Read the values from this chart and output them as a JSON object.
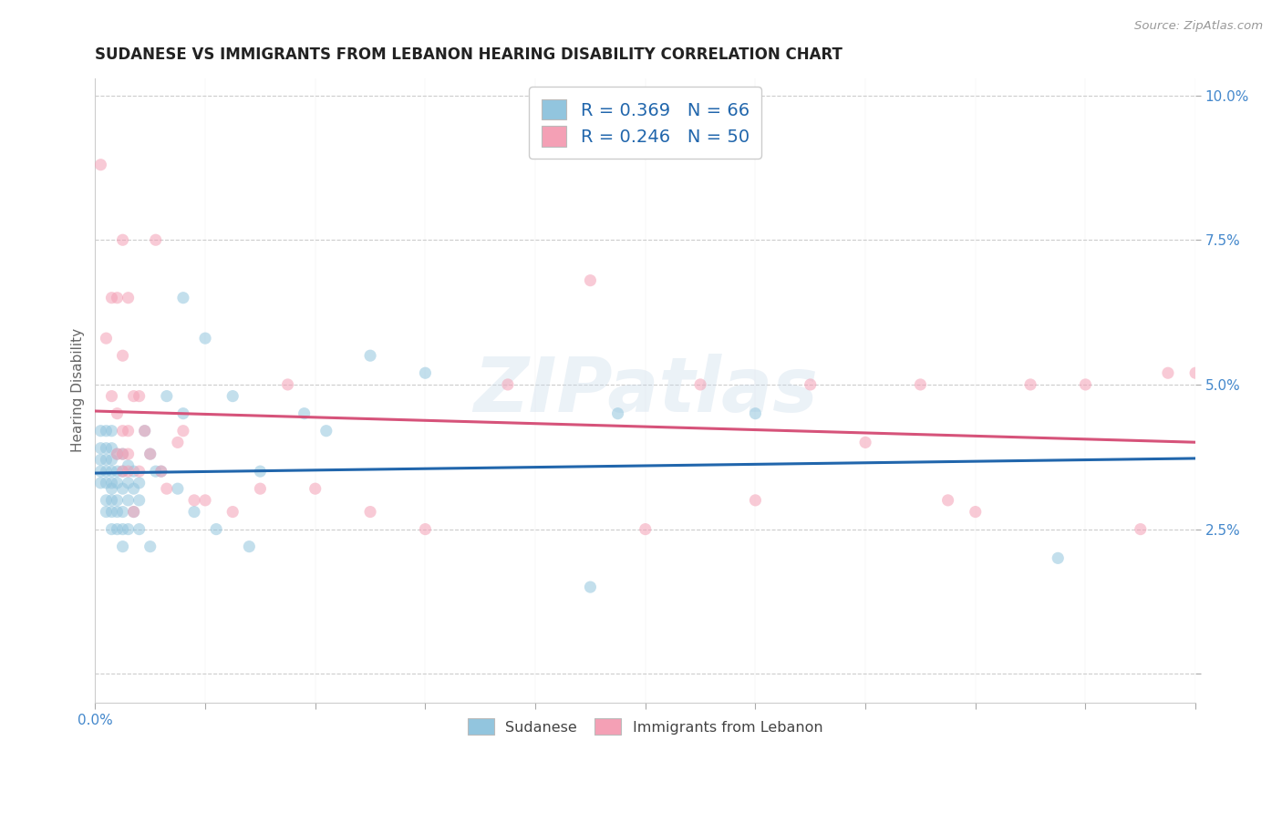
{
  "title": "SUDANESE VS IMMIGRANTS FROM LEBANON HEARING DISABILITY CORRELATION CHART",
  "source": "Source: ZipAtlas.com",
  "ylabel": "Hearing Disability",
  "xlim": [
    0.0,
    0.2
  ],
  "ylim": [
    -0.005,
    0.103
  ],
  "xticks": [
    0.0,
    0.02,
    0.04,
    0.06,
    0.08,
    0.1,
    0.12,
    0.14,
    0.16,
    0.18,
    0.2
  ],
  "yticks": [
    0.0,
    0.025,
    0.05,
    0.075,
    0.1
  ],
  "xticklabels_show": {
    "0.0": "0.0%"
  },
  "yticklabels": [
    "",
    "2.5%",
    "5.0%",
    "7.5%",
    "10.0%"
  ],
  "legend_line1": "R = 0.369   N = 66",
  "legend_line2": "R = 0.246   N = 50",
  "blue_color": "#92c5de",
  "pink_color": "#f4a0b5",
  "blue_line_color": "#2166ac",
  "pink_line_color": "#d6537a",
  "watermark_text": "ZIPatlas",
  "sudanese_x": [
    0.001,
    0.001,
    0.001,
    0.001,
    0.001,
    0.002,
    0.002,
    0.002,
    0.002,
    0.002,
    0.002,
    0.002,
    0.003,
    0.003,
    0.003,
    0.003,
    0.003,
    0.003,
    0.003,
    0.003,
    0.003,
    0.004,
    0.004,
    0.004,
    0.004,
    0.004,
    0.004,
    0.005,
    0.005,
    0.005,
    0.005,
    0.005,
    0.005,
    0.006,
    0.006,
    0.006,
    0.006,
    0.007,
    0.007,
    0.007,
    0.008,
    0.008,
    0.008,
    0.009,
    0.01,
    0.01,
    0.011,
    0.012,
    0.013,
    0.015,
    0.016,
    0.016,
    0.018,
    0.02,
    0.022,
    0.025,
    0.028,
    0.03,
    0.038,
    0.042,
    0.05,
    0.06,
    0.09,
    0.095,
    0.12,
    0.175
  ],
  "sudanese_y": [
    0.033,
    0.035,
    0.037,
    0.039,
    0.042,
    0.028,
    0.03,
    0.033,
    0.035,
    0.037,
    0.039,
    0.042,
    0.025,
    0.028,
    0.03,
    0.032,
    0.033,
    0.035,
    0.037,
    0.039,
    0.042,
    0.025,
    0.028,
    0.03,
    0.033,
    0.035,
    0.038,
    0.022,
    0.025,
    0.028,
    0.032,
    0.035,
    0.038,
    0.025,
    0.03,
    0.033,
    0.036,
    0.028,
    0.032,
    0.035,
    0.025,
    0.03,
    0.033,
    0.042,
    0.022,
    0.038,
    0.035,
    0.035,
    0.048,
    0.032,
    0.045,
    0.065,
    0.028,
    0.058,
    0.025,
    0.048,
    0.022,
    0.035,
    0.045,
    0.042,
    0.055,
    0.052,
    0.015,
    0.045,
    0.045,
    0.02
  ],
  "lebanon_x": [
    0.001,
    0.002,
    0.003,
    0.003,
    0.004,
    0.004,
    0.004,
    0.005,
    0.005,
    0.005,
    0.005,
    0.005,
    0.006,
    0.006,
    0.006,
    0.006,
    0.007,
    0.007,
    0.008,
    0.008,
    0.009,
    0.01,
    0.011,
    0.012,
    0.013,
    0.015,
    0.016,
    0.018,
    0.02,
    0.025,
    0.03,
    0.035,
    0.04,
    0.05,
    0.06,
    0.075,
    0.09,
    0.1,
    0.11,
    0.12,
    0.13,
    0.14,
    0.15,
    0.155,
    0.16,
    0.17,
    0.18,
    0.19,
    0.195,
    0.2
  ],
  "lebanon_y": [
    0.088,
    0.058,
    0.048,
    0.065,
    0.038,
    0.045,
    0.065,
    0.035,
    0.038,
    0.042,
    0.055,
    0.075,
    0.035,
    0.038,
    0.042,
    0.065,
    0.028,
    0.048,
    0.035,
    0.048,
    0.042,
    0.038,
    0.075,
    0.035,
    0.032,
    0.04,
    0.042,
    0.03,
    0.03,
    0.028,
    0.032,
    0.05,
    0.032,
    0.028,
    0.025,
    0.05,
    0.068,
    0.025,
    0.05,
    0.03,
    0.05,
    0.04,
    0.05,
    0.03,
    0.028,
    0.05,
    0.05,
    0.025,
    0.052,
    0.052
  ],
  "title_fontsize": 12,
  "axis_label_fontsize": 11,
  "tick_fontsize": 11,
  "marker_size": 90,
  "marker_alpha": 0.55,
  "background_color": "#ffffff",
  "grid_color": "#cccccc",
  "tick_color": "#4488cc"
}
